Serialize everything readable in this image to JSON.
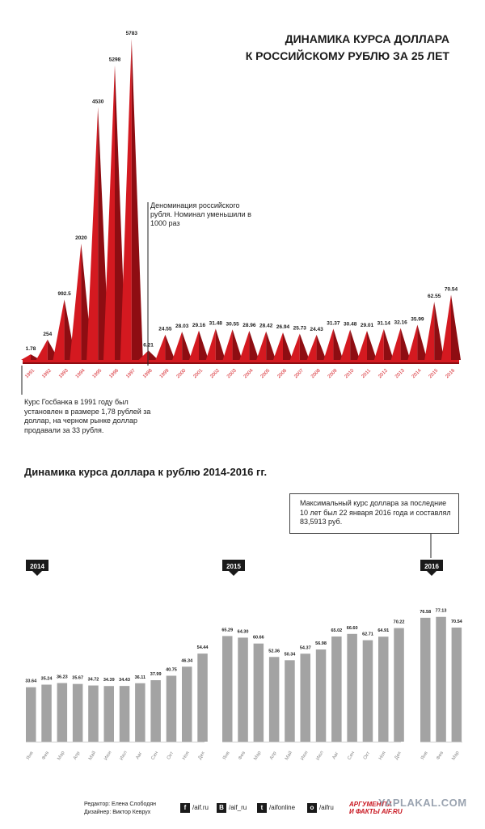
{
  "header": {
    "title_line1": "ДИНАМИКА КУРСА ДОЛЛАРА",
    "title_line2": "К РОССИЙСКОМУ РУБЛЮ ЗА 25 ЛЕТ"
  },
  "annotations": {
    "denomination": "Деноминация российского рубля. Номинал уменьшили в 1000 раз",
    "rate_1991": "Курс Госбанка в 1991 году был установлен в размере 1,78 рублей за доллар, на черном рынке доллар продавали за 33 рубля."
  },
  "section2": {
    "title": "Динамика курса доллара к рублю 2014-2016 гг.",
    "max_note": "Максимальный курс доллара за последние 10 лет был 22 января 2016 года и составлял 83,5913 руб."
  },
  "footer": {
    "editor": "Редактор: Елена Слободян",
    "designer": "Дизайнер: Виктор Кеврух",
    "social": [
      {
        "icon": "f",
        "label": "/aif.ru"
      },
      {
        "icon": "В",
        "label": "/aif_ru"
      },
      {
        "icon": "t",
        "label": "/aifonline"
      },
      {
        "icon": "o",
        "label": "/aifru"
      }
    ],
    "logo_line1": "АРГУМЕНТЫ",
    "logo_line2": "И ФАКТЫ AIF.RU",
    "watermark": "YAPLAKAL.COM"
  },
  "colors": {
    "red": "#d41920",
    "red_dark": "#8e0d12",
    "gray_bar": "#a3a3a3",
    "black_tag": "#1a1a1a"
  },
  "chart_data": [
    {
      "type": "area",
      "title": "ДИНАМИКА КУРСА ДОЛЛАРА К РОССИЙСКОМУ РУБЛЮ ЗА 25 ЛЕТ",
      "categories": [
        "1991",
        "1992",
        "1993",
        "1994",
        "1995",
        "1996",
        "1997",
        "1998",
        "1999",
        "2000",
        "2001",
        "2002",
        "2003",
        "2004",
        "2005",
        "2006",
        "2007",
        "2008",
        "2009",
        "2010",
        "2011",
        "2012",
        "2013",
        "2014",
        "2015",
        "2016"
      ],
      "values": [
        1.78,
        254,
        992.5,
        2020,
        4530,
        5298,
        5783,
        6.21,
        24.55,
        28.03,
        29.16,
        31.48,
        30.55,
        28.96,
        28.42,
        26.94,
        25.73,
        24.43,
        31.37,
        30.48,
        29.01,
        31.14,
        32.16,
        35.99,
        62.55,
        70.54
      ],
      "value_labels": [
        "1.78",
        "254",
        "992.5",
        "2020",
        "4530",
        "5298",
        "5783",
        "6.21",
        "24.55",
        "28.03",
        "29.16",
        "31.48",
        "30.55",
        "28.96",
        "28.42",
        "26.94",
        "25.73",
        "24.43",
        "31.37",
        "30.48",
        "29.01",
        "31.14",
        "32.16",
        "35.99",
        "62.55",
        "70.54"
      ],
      "grid": false
    },
    {
      "type": "bar",
      "title": "Динамика курса доллара к рублю 2014-2016 гг.",
      "groups": [
        {
          "year": "2014",
          "months": [
            "Янв",
            "Фев",
            "Мар",
            "Апр",
            "Май",
            "Июн",
            "Июл",
            "Авг",
            "Сен",
            "Окт",
            "Ноя",
            "Дек"
          ],
          "values": [
            33.64,
            35.24,
            36.23,
            35.67,
            34.72,
            34.39,
            34.43,
            36.11,
            37.99,
            40.75,
            46.34,
            54.44
          ]
        },
        {
          "year": "2015",
          "months": [
            "Янв",
            "Фев",
            "Мар",
            "Апр",
            "Май",
            "Июн",
            "Июл",
            "Авг",
            "Сен",
            "Окт",
            "Ноя",
            "Дек"
          ],
          "values": [
            65.29,
            64.3,
            60.66,
            52.36,
            50.34,
            54.37,
            56.98,
            65.02,
            66.6,
            62.71,
            64.91,
            70.22
          ]
        },
        {
          "year": "2016",
          "months": [
            "Янв",
            "Фев",
            "Мар"
          ],
          "values": [
            76.58,
            77.13,
            70.54
          ]
        }
      ],
      "value_labels": [
        [
          "33.64",
          "35.24",
          "36.23",
          "35.67",
          "34.72",
          "34.39",
          "34.43",
          "36.11",
          "37.99",
          "40.75",
          "46.34",
          "54.44"
        ],
        [
          "65.29",
          "64.30",
          "60.66",
          "52.36",
          "50.34",
          "54.37",
          "56.98",
          "65.02",
          "66.60",
          "62.71",
          "64.91",
          "70.22"
        ],
        [
          "76.58",
          "77.13",
          "70.54"
        ]
      ],
      "grid": false
    }
  ]
}
